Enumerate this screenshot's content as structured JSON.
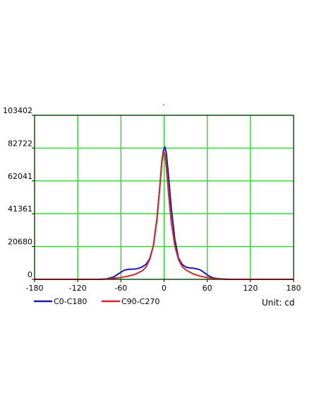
{
  "chart_data": {
    "type": "line",
    "title": "",
    "xlabel": "",
    "ylabel": "",
    "unit_label": "Unit: cd",
    "xlim": [
      -180,
      180
    ],
    "ylim": [
      0,
      103402
    ],
    "x_ticks": [
      -180,
      -120,
      -60,
      0,
      60,
      120,
      180
    ],
    "y_ticks": [
      0,
      20680,
      41361,
      62041,
      82722,
      103402
    ],
    "grid": true,
    "legend_position": "bottom-left",
    "series": [
      {
        "name": "C0-C180",
        "color": "#1a1ab4",
        "points": [
          [
            -180,
            0
          ],
          [
            -90,
            0
          ],
          [
            -80,
            300
          ],
          [
            -70,
            1500
          ],
          [
            -65,
            3000
          ],
          [
            -60,
            4500
          ],
          [
            -55,
            5800
          ],
          [
            -50,
            6300
          ],
          [
            -45,
            6400
          ],
          [
            -40,
            6500
          ],
          [
            -35,
            7000
          ],
          [
            -30,
            8000
          ],
          [
            -25,
            9500
          ],
          [
            -20,
            13000
          ],
          [
            -15,
            21000
          ],
          [
            -10,
            38000
          ],
          [
            -6,
            58000
          ],
          [
            -3,
            75000
          ],
          [
            -1,
            81000
          ],
          [
            0,
            82000
          ],
          [
            1,
            83500
          ],
          [
            3,
            80000
          ],
          [
            6,
            66000
          ],
          [
            10,
            45000
          ],
          [
            15,
            25000
          ],
          [
            20,
            13500
          ],
          [
            25,
            9500
          ],
          [
            30,
            7800
          ],
          [
            35,
            7200
          ],
          [
            40,
            7000
          ],
          [
            45,
            6700
          ],
          [
            50,
            6000
          ],
          [
            55,
            4500
          ],
          [
            60,
            2800
          ],
          [
            65,
            1500
          ],
          [
            70,
            700
          ],
          [
            80,
            200
          ],
          [
            90,
            0
          ],
          [
            180,
            0
          ]
        ]
      },
      {
        "name": "C90-C270",
        "color": "#d42828",
        "points": [
          [
            -180,
            0
          ],
          [
            -90,
            0
          ],
          [
            -80,
            200
          ],
          [
            -70,
            600
          ],
          [
            -60,
            1200
          ],
          [
            -50,
            2000
          ],
          [
            -40,
            3200
          ],
          [
            -30,
            5500
          ],
          [
            -25,
            7800
          ],
          [
            -20,
            12500
          ],
          [
            -15,
            21000
          ],
          [
            -10,
            37000
          ],
          [
            -6,
            58000
          ],
          [
            -3,
            74000
          ],
          [
            -1,
            79500
          ],
          [
            0,
            80500
          ],
          [
            1,
            79000
          ],
          [
            3,
            71000
          ],
          [
            6,
            55000
          ],
          [
            10,
            36000
          ],
          [
            15,
            21000
          ],
          [
            20,
            12500
          ],
          [
            25,
            8200
          ],
          [
            30,
            6000
          ],
          [
            40,
            3500
          ],
          [
            50,
            2000
          ],
          [
            60,
            1100
          ],
          [
            70,
            500
          ],
          [
            80,
            150
          ],
          [
            90,
            0
          ],
          [
            180,
            0
          ]
        ]
      }
    ]
  },
  "top_mark": "."
}
